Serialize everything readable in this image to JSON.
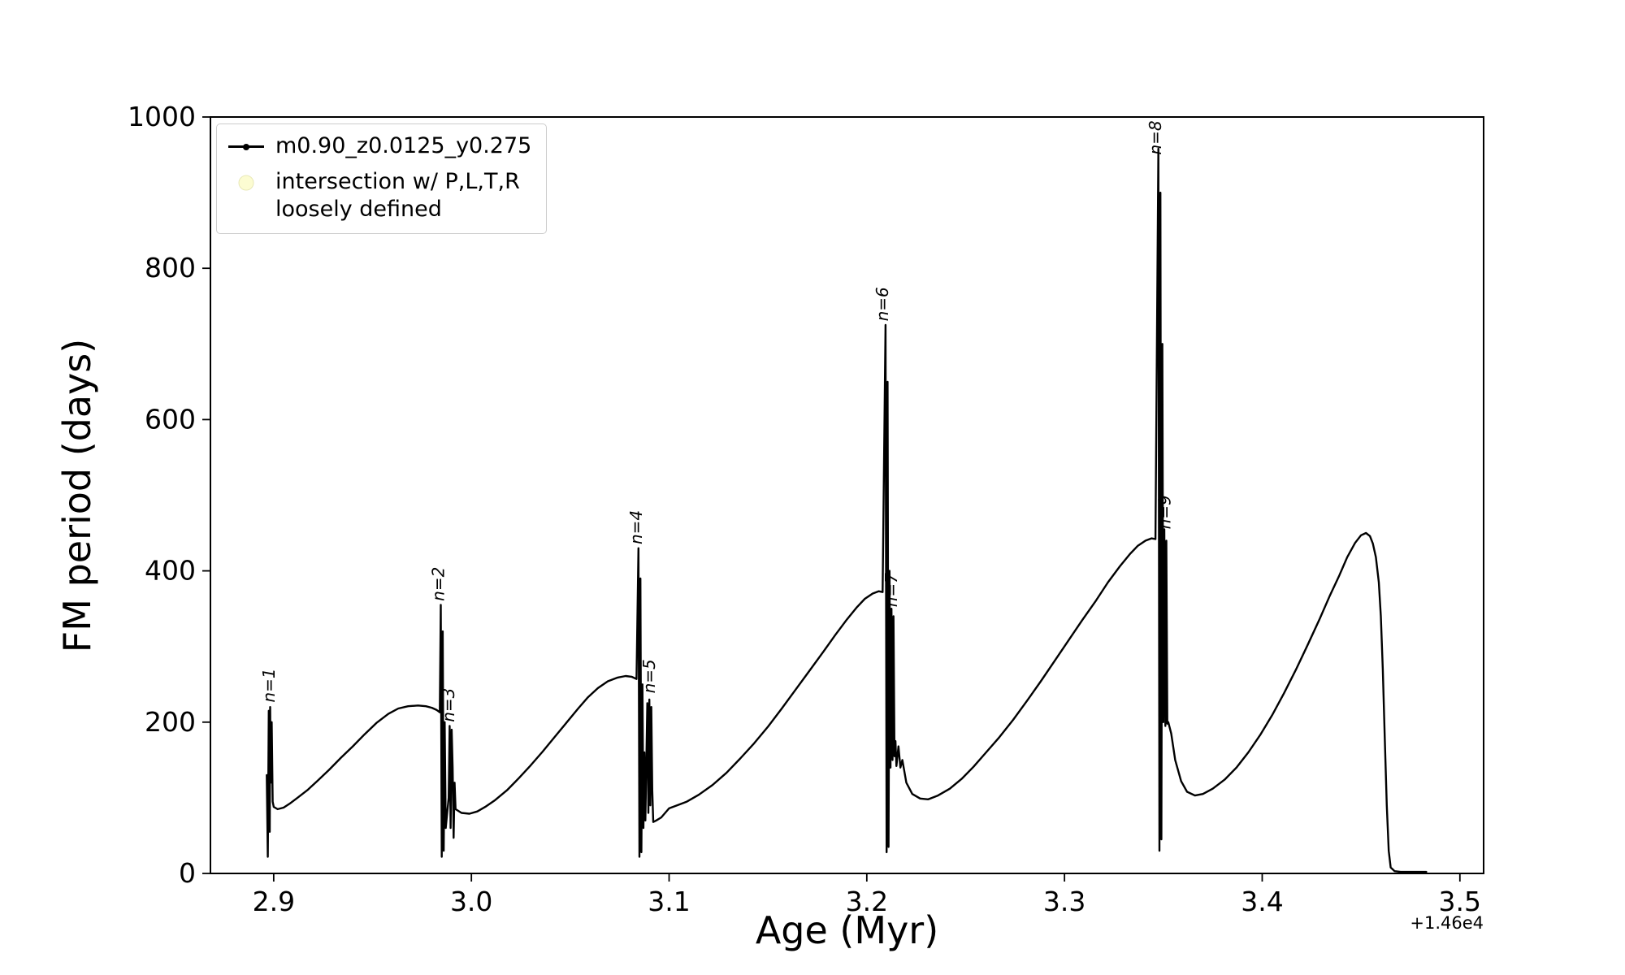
{
  "figure": {
    "background": "#ffffff"
  },
  "chart_data": {
    "type": "line",
    "title": "",
    "xlabel": "Age (Myr)",
    "ylabel": "FM period (days)",
    "x_offset_text": "+1.46e4",
    "xlim": [
      2.868,
      3.512
    ],
    "ylim": [
      0,
      1000
    ],
    "grid": false,
    "legend_position": "upper-left",
    "xticks": {
      "values": [
        2.9,
        3.0,
        3.1,
        3.2,
        3.3,
        3.4,
        3.5
      ],
      "labels": [
        "2.9",
        "3.0",
        "3.1",
        "3.2",
        "3.3",
        "3.4",
        "3.5"
      ]
    },
    "yticks": {
      "values": [
        0,
        200,
        400,
        600,
        800,
        1000
      ],
      "labels": [
        "0",
        "200",
        "400",
        "600",
        "800",
        "1000"
      ]
    },
    "legend": [
      {
        "label": "m0.90_z0.0125_y0.275",
        "marker": "line-with-dot",
        "color": "#000000"
      },
      {
        "label_lines": [
          "intersection w/ P,L,T,R",
          "loosely defined"
        ],
        "marker": "circle",
        "color": "#fcfcd2"
      }
    ],
    "annotations": [
      {
        "label": "n=1",
        "x": 2.9005,
        "y": 226
      },
      {
        "label": "n=2",
        "x": 2.9862,
        "y": 360
      },
      {
        "label": "n=3",
        "x": 2.9912,
        "y": 200
      },
      {
        "label": "n=4",
        "x": 3.0862,
        "y": 435
      },
      {
        "label": "n=5",
        "x": 3.0928,
        "y": 238
      },
      {
        "label": "n=6",
        "x": 3.2108,
        "y": 730
      },
      {
        "label": "n=7",
        "x": 3.2152,
        "y": 352
      },
      {
        "label": "n=8",
        "x": 3.3488,
        "y": 950
      },
      {
        "label": "n=9",
        "x": 3.3535,
        "y": 455
      }
    ],
    "series": [
      {
        "name": "m0.90_z0.0125_y0.275",
        "color": "#000000",
        "points": [
          [
            2.8965,
            130
          ],
          [
            2.897,
            22
          ],
          [
            2.8975,
            215
          ],
          [
            2.898,
            55
          ],
          [
            2.8982,
            220
          ],
          [
            2.8985,
            120
          ],
          [
            2.899,
            200
          ],
          [
            2.8995,
            95
          ],
          [
            2.9,
            88
          ],
          [
            2.902,
            85
          ],
          [
            2.905,
            87
          ],
          [
            2.908,
            92
          ],
          [
            2.912,
            100
          ],
          [
            2.917,
            110
          ],
          [
            2.922,
            122
          ],
          [
            2.928,
            137
          ],
          [
            2.934,
            153
          ],
          [
            2.94,
            168
          ],
          [
            2.946,
            184
          ],
          [
            2.952,
            199
          ],
          [
            2.958,
            211
          ],
          [
            2.963,
            218
          ],
          [
            2.968,
            221
          ],
          [
            2.973,
            222
          ],
          [
            2.977,
            221
          ],
          [
            2.98,
            219
          ],
          [
            2.9825,
            216
          ],
          [
            2.984,
            213
          ],
          [
            2.9845,
            355
          ],
          [
            2.985,
            22
          ],
          [
            2.9855,
            320
          ],
          [
            2.986,
            30
          ],
          [
            2.9865,
            200
          ],
          [
            2.987,
            60
          ],
          [
            2.9885,
            100
          ],
          [
            2.989,
            195
          ],
          [
            2.9895,
            60
          ],
          [
            2.99,
            190
          ],
          [
            2.9905,
            140
          ],
          [
            2.991,
            47
          ],
          [
            2.9915,
            120
          ],
          [
            2.992,
            85
          ],
          [
            2.995,
            80
          ],
          [
            2.999,
            79
          ],
          [
            3.003,
            82
          ],
          [
            3.007,
            88
          ],
          [
            3.012,
            97
          ],
          [
            3.018,
            110
          ],
          [
            3.024,
            126
          ],
          [
            3.03,
            143
          ],
          [
            3.036,
            161
          ],
          [
            3.042,
            180
          ],
          [
            3.048,
            199
          ],
          [
            3.054,
            218
          ],
          [
            3.059,
            233
          ],
          [
            3.064,
            245
          ],
          [
            3.069,
            254
          ],
          [
            3.074,
            259
          ],
          [
            3.078,
            261
          ],
          [
            3.081,
            260
          ],
          [
            3.0835,
            257
          ],
          [
            3.0845,
            430
          ],
          [
            3.085,
            22
          ],
          [
            3.0855,
            390
          ],
          [
            3.086,
            28
          ],
          [
            3.0865,
            250
          ],
          [
            3.087,
            60
          ],
          [
            3.0875,
            160
          ],
          [
            3.088,
            70
          ],
          [
            3.089,
            225
          ],
          [
            3.0895,
            80
          ],
          [
            3.09,
            230
          ],
          [
            3.0905,
            90
          ],
          [
            3.091,
            220
          ],
          [
            3.0915,
            110
          ],
          [
            3.092,
            68
          ],
          [
            3.0935,
            70
          ],
          [
            3.096,
            74
          ],
          [
            3.1,
            86
          ],
          [
            3.104,
            90
          ],
          [
            3.109,
            95
          ],
          [
            3.115,
            104
          ],
          [
            3.122,
            117
          ],
          [
            3.129,
            133
          ],
          [
            3.136,
            152
          ],
          [
            3.143,
            172
          ],
          [
            3.15,
            194
          ],
          [
            3.157,
            218
          ],
          [
            3.164,
            243
          ],
          [
            3.171,
            268
          ],
          [
            3.178,
            293
          ],
          [
            3.184,
            315
          ],
          [
            3.19,
            336
          ],
          [
            3.195,
            352
          ],
          [
            3.199,
            363
          ],
          [
            3.203,
            370
          ],
          [
            3.206,
            373
          ],
          [
            3.208,
            372
          ],
          [
            3.2095,
            725
          ],
          [
            3.21,
            28
          ],
          [
            3.2105,
            650
          ],
          [
            3.211,
            35
          ],
          [
            3.2115,
            400
          ],
          [
            3.212,
            140
          ],
          [
            3.2125,
            350
          ],
          [
            3.213,
            150
          ],
          [
            3.2135,
            340
          ],
          [
            3.214,
            155
          ],
          [
            3.2145,
            175
          ],
          [
            3.215,
            142
          ],
          [
            3.216,
            168
          ],
          [
            3.217,
            140
          ],
          [
            3.218,
            150
          ],
          [
            3.22,
            120
          ],
          [
            3.223,
            105
          ],
          [
            3.227,
            99
          ],
          [
            3.231,
            98
          ],
          [
            3.236,
            103
          ],
          [
            3.242,
            112
          ],
          [
            3.248,
            125
          ],
          [
            3.254,
            141
          ],
          [
            3.26,
            159
          ],
          [
            3.267,
            180
          ],
          [
            3.274,
            203
          ],
          [
            3.281,
            228
          ],
          [
            3.288,
            254
          ],
          [
            3.295,
            281
          ],
          [
            3.302,
            308
          ],
          [
            3.309,
            335
          ],
          [
            3.316,
            361
          ],
          [
            3.322,
            385
          ],
          [
            3.328,
            406
          ],
          [
            3.333,
            422
          ],
          [
            3.337,
            433
          ],
          [
            3.341,
            440
          ],
          [
            3.344,
            443
          ],
          [
            3.346,
            442
          ],
          [
            3.3475,
            958
          ],
          [
            3.348,
            30
          ],
          [
            3.3485,
            900
          ],
          [
            3.349,
            45
          ],
          [
            3.3495,
            700
          ],
          [
            3.35,
            200
          ],
          [
            3.3505,
            455
          ],
          [
            3.351,
            195
          ],
          [
            3.3515,
            440
          ],
          [
            3.352,
            198
          ],
          [
            3.3525,
            200
          ],
          [
            3.354,
            185
          ],
          [
            3.356,
            150
          ],
          [
            3.359,
            122
          ],
          [
            3.362,
            108
          ],
          [
            3.366,
            103
          ],
          [
            3.37,
            105
          ],
          [
            3.375,
            112
          ],
          [
            3.381,
            124
          ],
          [
            3.387,
            140
          ],
          [
            3.393,
            160
          ],
          [
            3.399,
            183
          ],
          [
            3.405,
            209
          ],
          [
            3.411,
            238
          ],
          [
            3.417,
            269
          ],
          [
            3.423,
            302
          ],
          [
            3.429,
            336
          ],
          [
            3.434,
            366
          ],
          [
            3.439,
            394
          ],
          [
            3.443,
            418
          ],
          [
            3.447,
            437
          ],
          [
            3.45,
            447
          ],
          [
            3.4525,
            450
          ],
          [
            3.4545,
            446
          ],
          [
            3.456,
            436
          ],
          [
            3.4575,
            418
          ],
          [
            3.459,
            385
          ],
          [
            3.46,
            340
          ],
          [
            3.461,
            270
          ],
          [
            3.462,
            180
          ],
          [
            3.463,
            90
          ],
          [
            3.464,
            30
          ],
          [
            3.465,
            8
          ],
          [
            3.467,
            3
          ],
          [
            3.47,
            2
          ],
          [
            3.475,
            2
          ],
          [
            3.48,
            2
          ],
          [
            3.483,
            2
          ]
        ]
      }
    ]
  }
}
